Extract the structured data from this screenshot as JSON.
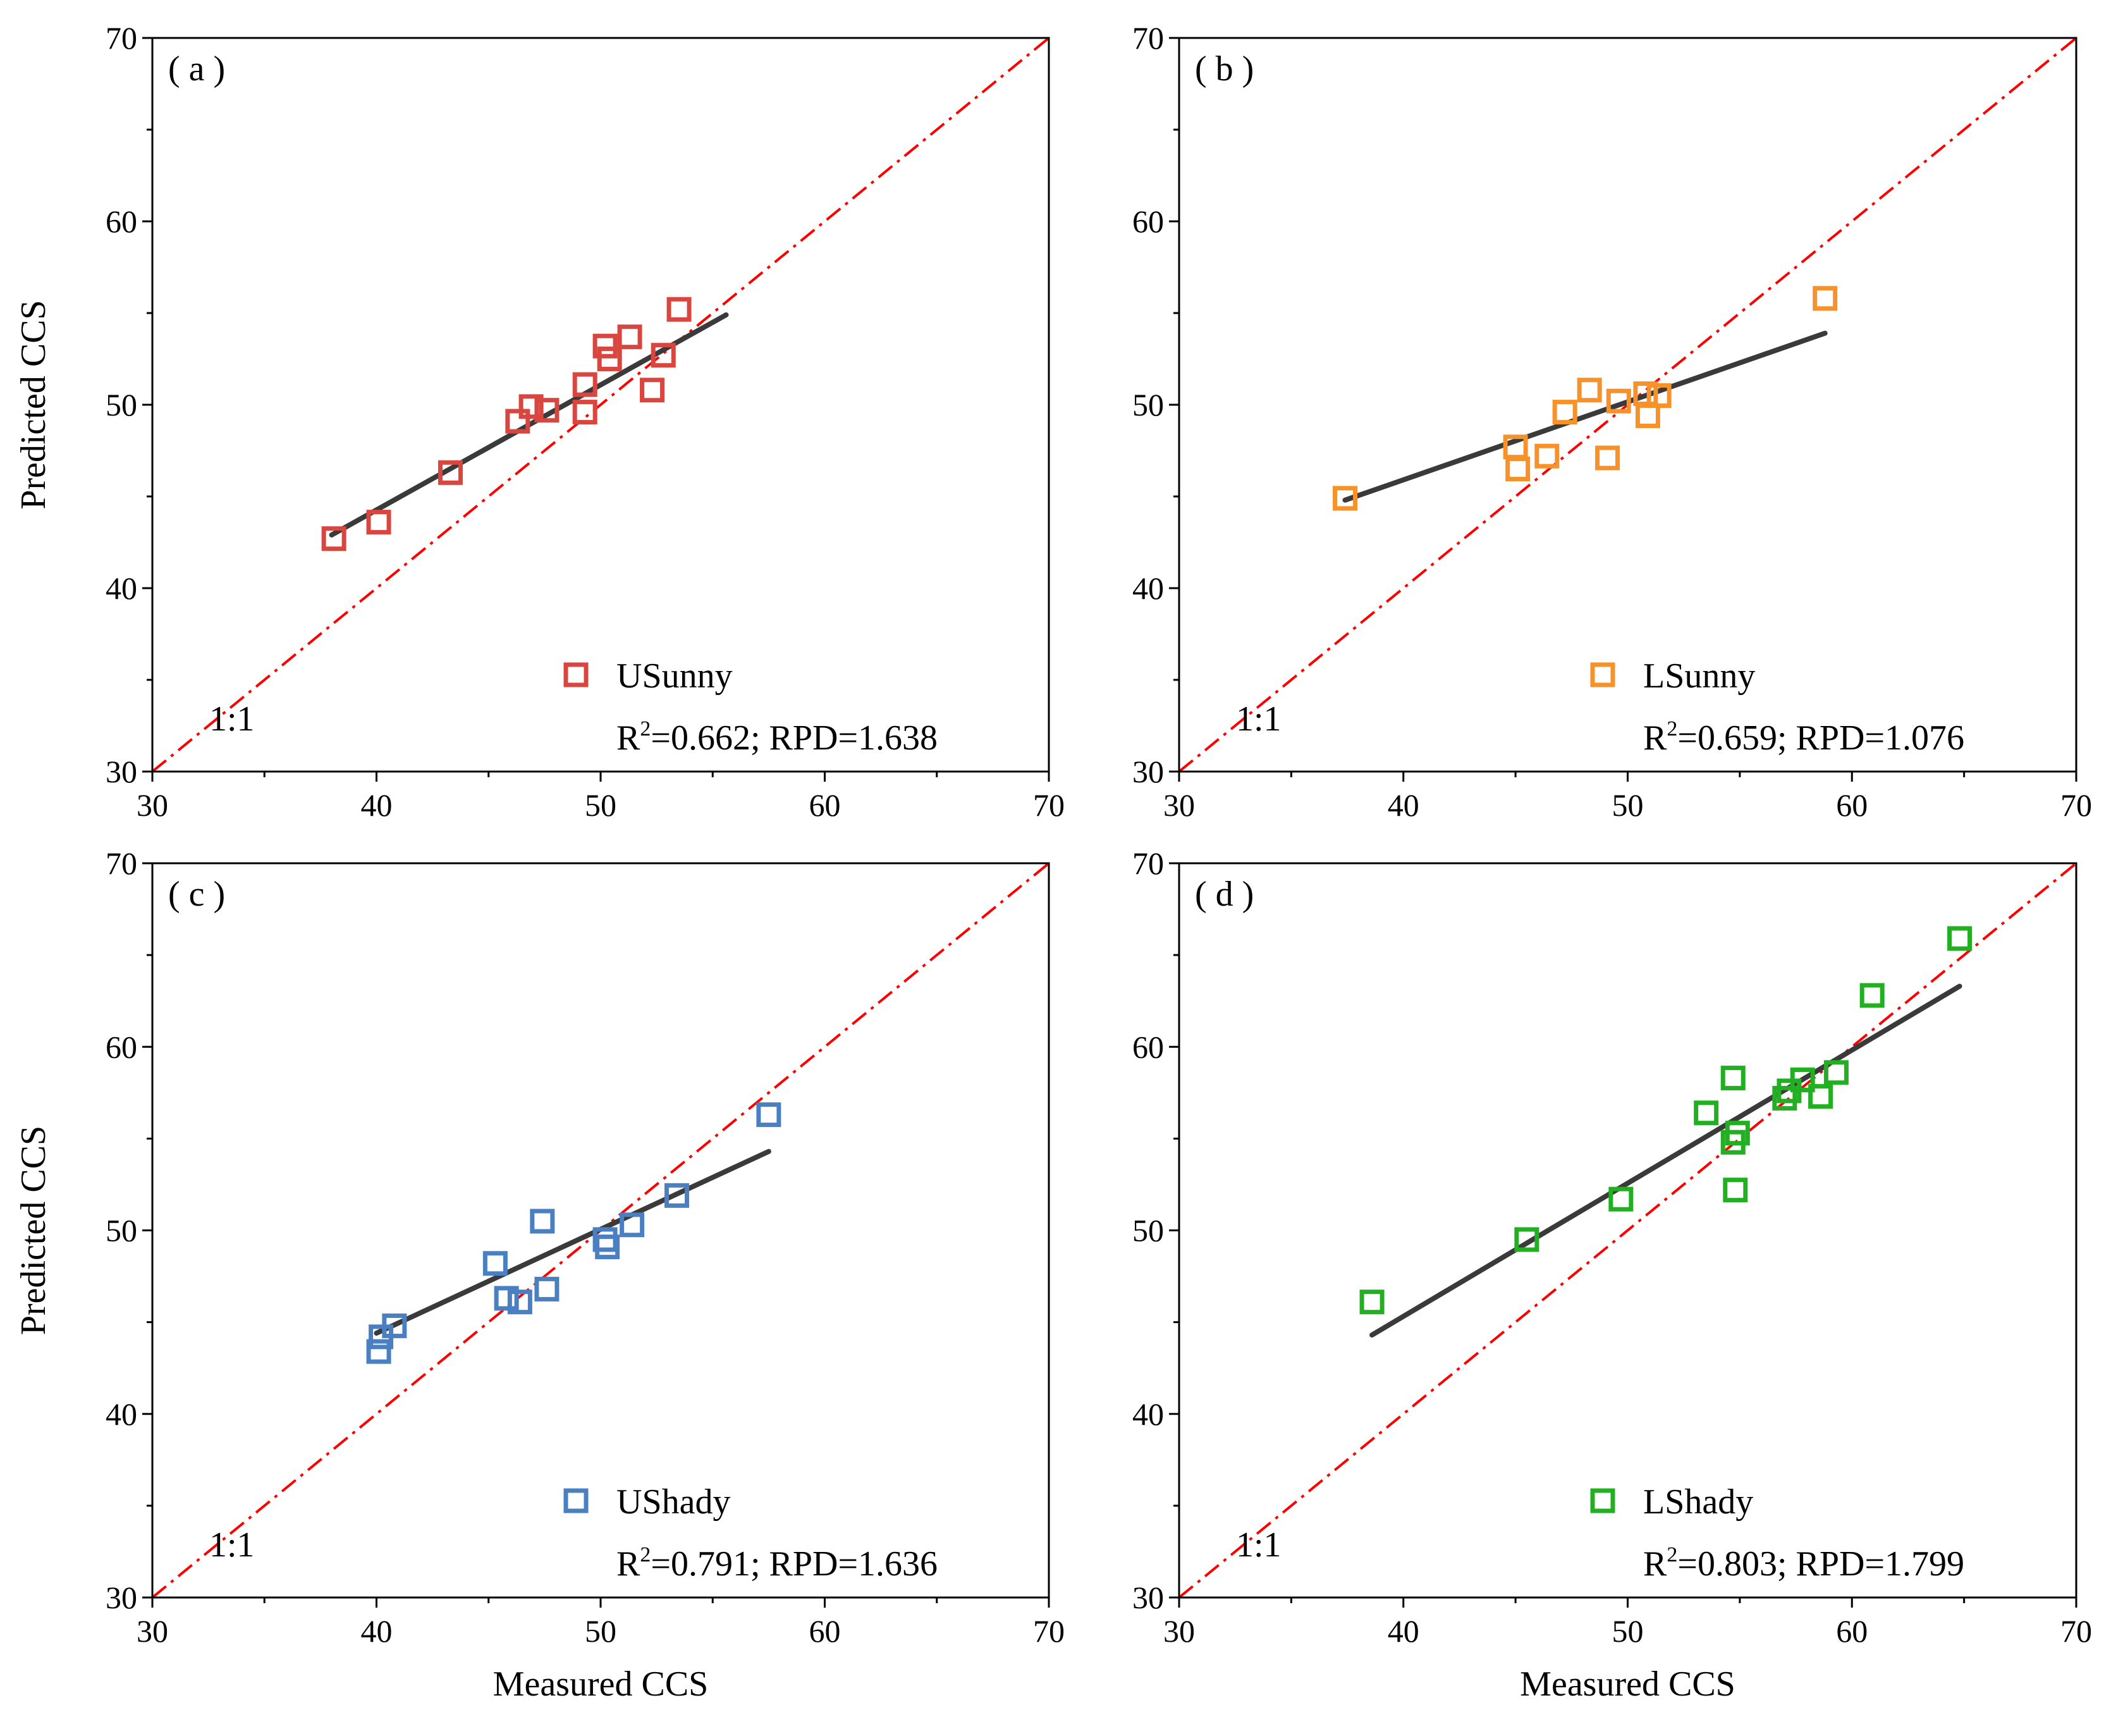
{
  "chart_data": [
    {
      "type": "scatter",
      "panel_label": "( a )",
      "series_name": "USunny",
      "stats": "=0.662; RPD=1.638",
      "r2_prefix": "R",
      "r2_sup": "2",
      "ref_line_label": "1:1",
      "color": "#d9463f",
      "xlabel": "",
      "ylabel": "Predicted CCS",
      "xlim": [
        30,
        70
      ],
      "ylim": [
        30,
        70
      ],
      "xticks": [
        "30",
        "40",
        "50",
        "60",
        "70"
      ],
      "yticks": [
        "30",
        "40",
        "50",
        "60",
        "70"
      ],
      "points": [
        [
          38.1,
          42.7
        ],
        [
          40.1,
          43.6
        ],
        [
          43.3,
          46.3
        ],
        [
          46.3,
          49.1
        ],
        [
          46.9,
          49.9
        ],
        [
          47.6,
          49.7
        ],
        [
          49.3,
          51.1
        ],
        [
          49.3,
          49.6
        ],
        [
          50.2,
          53.2
        ],
        [
          50.4,
          52.5
        ],
        [
          51.3,
          53.7
        ],
        [
          52.3,
          50.8
        ],
        [
          52.8,
          52.7
        ],
        [
          53.5,
          55.2
        ]
      ],
      "fit_line": [
        [
          38.0,
          42.9
        ],
        [
          55.6,
          54.9
        ]
      ]
    },
    {
      "type": "scatter",
      "panel_label": "( b )",
      "series_name": "LSunny",
      "stats": "=0.659; RPD=1.076",
      "r2_prefix": "R",
      "r2_sup": "2",
      "ref_line_label": "1:1",
      "color": "#f7922a",
      "xlabel": "",
      "ylabel": "",
      "xlim": [
        30,
        70
      ],
      "ylim": [
        30,
        70
      ],
      "xticks": [
        "30",
        "40",
        "50",
        "60",
        "70"
      ],
      "yticks": [
        "30",
        "40",
        "50",
        "60",
        "70"
      ],
      "points": [
        [
          37.4,
          44.9
        ],
        [
          45.0,
          47.7
        ],
        [
          45.1,
          46.5
        ],
        [
          46.4,
          47.2
        ],
        [
          47.2,
          49.6
        ],
        [
          48.3,
          50.8
        ],
        [
          49.1,
          47.1
        ],
        [
          49.6,
          50.2
        ],
        [
          50.8,
          50.6
        ],
        [
          50.9,
          49.4
        ],
        [
          51.4,
          50.5
        ],
        [
          58.8,
          55.8
        ]
      ],
      "fit_line": [
        [
          37.4,
          44.8
        ],
        [
          58.8,
          53.9
        ]
      ]
    },
    {
      "type": "scatter",
      "panel_label": "( c )",
      "series_name": "UShady",
      "stats": "=0.791; RPD=1.636",
      "r2_prefix": "R",
      "r2_sup": "2",
      "ref_line_label": "1:1",
      "color": "#4a7fc1",
      "xlabel": "Measured CCS",
      "ylabel": "Predicted CCS",
      "xlim": [
        30,
        70
      ],
      "ylim": [
        30,
        70
      ],
      "xticks": [
        "30",
        "40",
        "50",
        "60",
        "70"
      ],
      "yticks": [
        "30",
        "40",
        "50",
        "60",
        "70"
      ],
      "points": [
        [
          40.1,
          43.4
        ],
        [
          40.2,
          44.2
        ],
        [
          40.8,
          44.8
        ],
        [
          45.3,
          48.2
        ],
        [
          45.8,
          46.3
        ],
        [
          46.4,
          46.1
        ],
        [
          47.4,
          50.5
        ],
        [
          47.6,
          46.8
        ],
        [
          50.2,
          49.5
        ],
        [
          50.3,
          49.1
        ],
        [
          51.4,
          50.3
        ],
        [
          53.4,
          51.9
        ],
        [
          57.5,
          56.3
        ]
      ],
      "fit_line": [
        [
          40.0,
          44.4
        ],
        [
          57.5,
          54.3
        ]
      ]
    },
    {
      "type": "scatter",
      "panel_label": "( d )",
      "series_name": "LShady",
      "stats": "=0.803; RPD=1.799",
      "r2_prefix": "R",
      "r2_sup": "2",
      "ref_line_label": "1:1",
      "color": "#22b022",
      "xlabel": "Measured CCS",
      "ylabel": "",
      "xlim": [
        30,
        70
      ],
      "ylim": [
        30,
        70
      ],
      "xticks": [
        "30",
        "40",
        "50",
        "60",
        "70"
      ],
      "yticks": [
        "30",
        "40",
        "50",
        "60",
        "70"
      ],
      "points": [
        [
          38.6,
          46.1
        ],
        [
          45.5,
          49.5
        ],
        [
          49.7,
          51.7
        ],
        [
          53.5,
          56.4
        ],
        [
          54.7,
          58.3
        ],
        [
          54.7,
          54.8
        ],
        [
          54.8,
          52.2
        ],
        [
          54.9,
          55.3
        ],
        [
          57.0,
          57.2
        ],
        [
          57.2,
          57.6
        ],
        [
          57.8,
          58.2
        ],
        [
          58.6,
          57.3
        ],
        [
          59.3,
          58.6
        ],
        [
          60.9,
          62.8
        ],
        [
          64.8,
          65.9
        ]
      ],
      "fit_line": [
        [
          38.6,
          44.3
        ],
        [
          64.8,
          63.3
        ]
      ]
    }
  ]
}
